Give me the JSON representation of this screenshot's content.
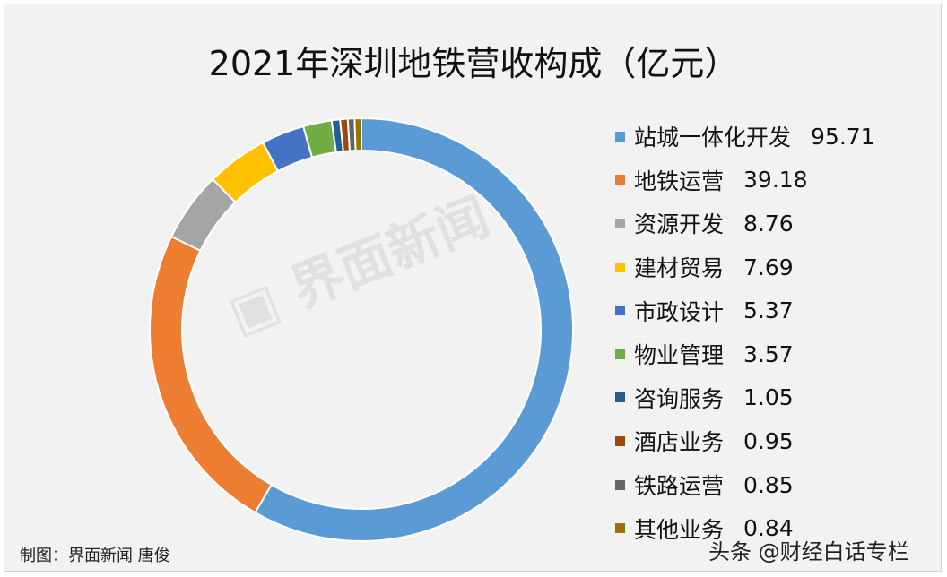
{
  "chart_data": {
    "type": "pie",
    "subtype": "donut",
    "title": "2021年深圳地铁营收构成（亿元）",
    "legend_position": "right",
    "categories": [
      "站城一体化开发",
      "地铁运营",
      "资源开发",
      "建材贸易",
      "市政设计",
      "物业管理",
      "咨询服务",
      "酒店业务",
      "铁路运营",
      "其他业务"
    ],
    "values": [
      95.71,
      39.18,
      8.76,
      7.69,
      5.37,
      3.57,
      1.05,
      0.95,
      0.85,
      0.84
    ],
    "value_labels": [
      "95.71",
      "39.18",
      "8.76",
      "7.69",
      "5.37",
      "3.57",
      "1.05",
      "0.95",
      "0.85",
      "0.84"
    ],
    "colors": [
      "#5b9bd5",
      "#ed7d31",
      "#a5a5a5",
      "#ffc000",
      "#4472c4",
      "#70ad47",
      "#255e91",
      "#9e480e",
      "#636363",
      "#997300"
    ]
  },
  "credit": "制图：界面新闻 唐俊",
  "source": "头条 @财经白话专栏",
  "watermark": "界面新闻"
}
